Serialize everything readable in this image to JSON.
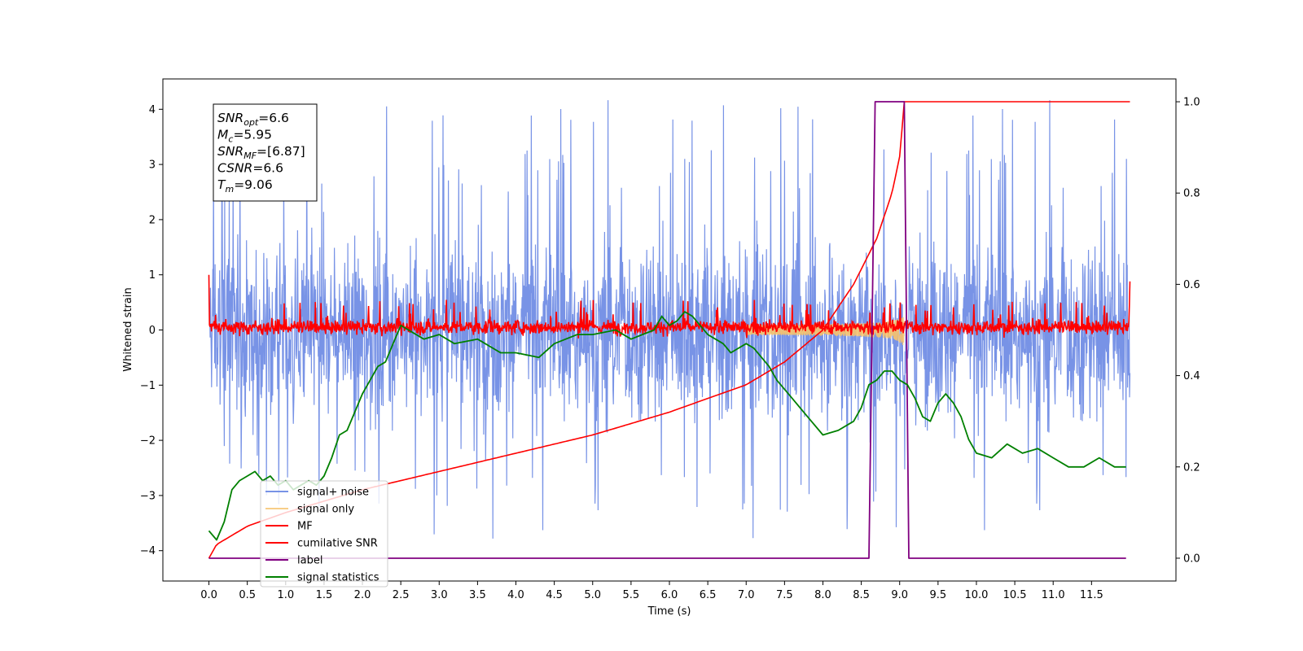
{
  "chart_data": {
    "type": "line",
    "xlabel": "Time (s)",
    "ylabel": "Whitened strain",
    "xlim": [
      -0.6,
      12.6
    ],
    "ylim": [
      -4.55,
      4.55
    ],
    "y2lim": [
      -0.05,
      1.05
    ],
    "x_ticks": [
      0.0,
      0.5,
      1.0,
      1.5,
      2.0,
      2.5,
      3.0,
      3.5,
      4.0,
      4.5,
      5.0,
      5.5,
      6.0,
      6.5,
      7.0,
      7.5,
      8.0,
      8.5,
      9.0,
      9.5,
      10.0,
      10.5,
      11.0,
      11.5
    ],
    "x_tick_labels": [
      "0.0",
      "0.5",
      "1.0",
      "1.5",
      "2.0",
      "2.5",
      "3.0",
      "3.5",
      "4.0",
      "4.5",
      "5.0",
      "5.5",
      "6.0",
      "6.5",
      "7.0",
      "7.5",
      "8.0",
      "8.5",
      "9.0",
      "9.5",
      "10.0",
      "10.5",
      "11.0",
      "11.5"
    ],
    "y_ticks": [
      -4,
      -3,
      -2,
      -1,
      0,
      1,
      2,
      3,
      4
    ],
    "y_tick_labels": [
      "−4",
      "−3",
      "−2",
      "−1",
      "0",
      "1",
      "2",
      "3",
      "4"
    ],
    "y2_ticks": [
      0.0,
      0.2,
      0.4,
      0.6,
      0.8,
      1.0
    ],
    "y2_tick_labels": [
      "0.0",
      "0.2",
      "0.4",
      "0.6",
      "0.8",
      "1.0"
    ],
    "legend_position": "lower-left",
    "info_box": {
      "lines": [
        {
          "italic": "SNR",
          "sub": "opt",
          "rest": "=6.6"
        },
        {
          "italic": "M",
          "sub": "c",
          "rest": "=5.95"
        },
        {
          "italic": "SNR",
          "sub": "MF",
          "rest": "=[6.87]"
        },
        {
          "italic": "CSNR",
          "sub": "",
          "rest": "=6.6"
        },
        {
          "italic": "T",
          "sub": "m",
          "rest": "=9.06"
        }
      ]
    },
    "series": [
      {
        "name": "signal+ noise",
        "color": "#7893e6",
        "axis": "left",
        "kind": "noise",
        "x_range": [
          0.0,
          12.0
        ],
        "amplitude_envelope": {
          "typical_max": 3.3,
          "peak_max": 4.18,
          "typical_min": -3.0,
          "peak_min": -3.85
        }
      },
      {
        "name": "signal only",
        "color": "#f7c36b",
        "axis": "left",
        "kind": "chirp",
        "x_range": [
          7.0,
          9.06
        ],
        "peak_amplitude": 0.85
      },
      {
        "name": "MF",
        "color": "#ff0000",
        "axis": "left",
        "kind": "mf",
        "x_range": [
          0.0,
          12.0
        ],
        "start_value": 1.0,
        "end_value": 0.88,
        "band": [
          -0.2,
          0.3
        ]
      },
      {
        "name": "cumilative SNR",
        "color": "#ff0000",
        "axis": "right",
        "x": [
          0.0,
          0.1,
          0.5,
          1.0,
          2.0,
          3.0,
          4.0,
          5.0,
          6.0,
          7.0,
          7.5,
          8.0,
          8.4,
          8.7,
          8.9,
          9.0,
          9.06,
          9.1,
          12.0
        ],
        "y": [
          0.0,
          0.03,
          0.07,
          0.1,
          0.15,
          0.19,
          0.23,
          0.27,
          0.32,
          0.38,
          0.43,
          0.5,
          0.6,
          0.7,
          0.8,
          0.88,
          1.0,
          1.0,
          1.0
        ]
      },
      {
        "name": "label",
        "color": "#800080",
        "axis": "right",
        "x": [
          0.0,
          8.6,
          8.68,
          9.06,
          9.12,
          11.95
        ],
        "y": [
          0.0,
          0.0,
          1.0,
          1.0,
          0.0,
          0.0
        ]
      },
      {
        "name": "signal statistics",
        "color": "#008000",
        "axis": "right",
        "x": [
          0.0,
          0.1,
          0.2,
          0.3,
          0.4,
          0.5,
          0.6,
          0.7,
          0.8,
          0.9,
          1.0,
          1.1,
          1.2,
          1.3,
          1.4,
          1.5,
          1.6,
          1.7,
          1.8,
          1.9,
          2.0,
          2.1,
          2.2,
          2.3,
          2.4,
          2.5,
          2.6,
          2.8,
          3.0,
          3.2,
          3.5,
          3.8,
          4.0,
          4.3,
          4.5,
          4.8,
          5.0,
          5.3,
          5.5,
          5.8,
          5.9,
          6.0,
          6.1,
          6.2,
          6.3,
          6.4,
          6.5,
          6.6,
          6.7,
          6.8,
          6.9,
          7.0,
          7.1,
          7.2,
          7.3,
          7.4,
          7.6,
          7.8,
          8.0,
          8.2,
          8.4,
          8.5,
          8.6,
          8.7,
          8.8,
          8.9,
          9.0,
          9.1,
          9.2,
          9.3,
          9.4,
          9.5,
          9.6,
          9.7,
          9.8,
          9.9,
          10.0,
          10.2,
          10.4,
          10.6,
          10.8,
          11.0,
          11.2,
          11.4,
          11.6,
          11.8,
          11.95
        ],
        "y": [
          0.06,
          0.04,
          0.08,
          0.15,
          0.17,
          0.18,
          0.19,
          0.17,
          0.18,
          0.16,
          0.17,
          0.15,
          0.16,
          0.17,
          0.16,
          0.18,
          0.22,
          0.27,
          0.28,
          0.32,
          0.36,
          0.39,
          0.42,
          0.43,
          0.47,
          0.51,
          0.5,
          0.48,
          0.49,
          0.47,
          0.48,
          0.45,
          0.45,
          0.44,
          0.47,
          0.49,
          0.49,
          0.5,
          0.48,
          0.5,
          0.53,
          0.51,
          0.52,
          0.54,
          0.53,
          0.51,
          0.49,
          0.48,
          0.47,
          0.45,
          0.46,
          0.47,
          0.46,
          0.44,
          0.42,
          0.39,
          0.35,
          0.31,
          0.27,
          0.28,
          0.3,
          0.33,
          0.38,
          0.39,
          0.41,
          0.41,
          0.39,
          0.38,
          0.35,
          0.31,
          0.3,
          0.34,
          0.36,
          0.34,
          0.31,
          0.26,
          0.23,
          0.22,
          0.25,
          0.23,
          0.24,
          0.22,
          0.2,
          0.2,
          0.22,
          0.2,
          0.2
        ]
      }
    ]
  }
}
